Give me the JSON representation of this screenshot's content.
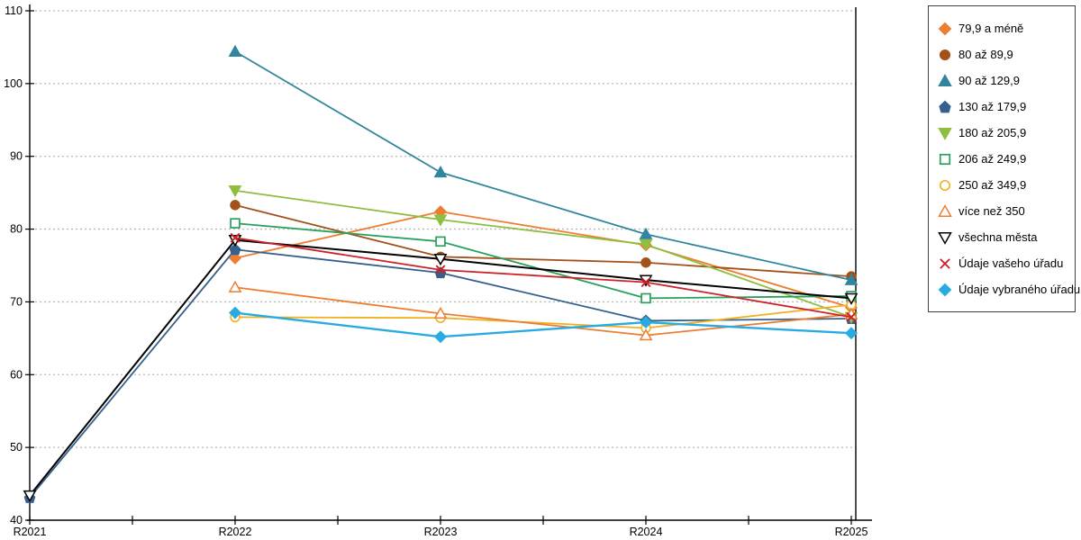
{
  "chart_data": {
    "type": "line",
    "title": "",
    "xlabel": "",
    "ylabel": "",
    "categories": [
      "R2021",
      "R2022",
      "R2023",
      "R2024",
      "R2025"
    ],
    "ylim": [
      40,
      110
    ],
    "y_ticks": [
      40,
      50,
      60,
      70,
      80,
      90,
      100,
      110
    ],
    "grid": "horizontal-dotted",
    "legend_position": "right",
    "series": [
      {
        "name": "79,9 a méně",
        "color": "#ED7D31",
        "marker": "diamond",
        "fill": "filled",
        "line_width": 1.8,
        "values": [
          null,
          76.0,
          82.4,
          77.8,
          69.2
        ]
      },
      {
        "name": "80 až 89,9",
        "color": "#A3511A",
        "marker": "circle",
        "fill": "filled",
        "line_width": 1.8,
        "values": [
          null,
          83.3,
          76.2,
          75.4,
          73.5
        ]
      },
      {
        "name": "90 až 129,9",
        "color": "#31859C",
        "marker": "triangle",
        "fill": "filled",
        "line_width": 1.8,
        "values": [
          null,
          104.4,
          87.8,
          79.3,
          73.0
        ]
      },
      {
        "name": "130 až 179,9",
        "color": "#35608D",
        "marker": "pentagon",
        "fill": "filled",
        "line_width": 1.8,
        "values": [
          43.1,
          77.2,
          74.0,
          67.4,
          67.7
        ]
      },
      {
        "name": "180 až 205,9",
        "color": "#8EBE42",
        "marker": "triangle-down",
        "fill": "filled",
        "line_width": 1.8,
        "values": [
          null,
          85.3,
          81.3,
          77.9,
          67.9
        ]
      },
      {
        "name": "206 až 249,9",
        "color": "#28A05C",
        "marker": "square",
        "fill": "open",
        "line_width": 1.8,
        "values": [
          null,
          80.8,
          78.3,
          70.5,
          70.8
        ]
      },
      {
        "name": "250 až 349,9",
        "color": "#F2B01E",
        "marker": "circle",
        "fill": "open",
        "line_width": 1.8,
        "values": [
          null,
          67.9,
          67.8,
          66.4,
          69.6
        ]
      },
      {
        "name": "více než 350",
        "color": "#ED7D31",
        "marker": "triangle",
        "fill": "open",
        "line_width": 1.8,
        "values": [
          null,
          72.0,
          68.4,
          65.4,
          68.3
        ]
      },
      {
        "name": "všechna města",
        "color": "#000000",
        "marker": "triangle-down",
        "fill": "open",
        "line_width": 2.0,
        "values": [
          43.4,
          78.5,
          75.9,
          73.0,
          70.5
        ]
      },
      {
        "name": "Údaje vašeho úřadu",
        "color": "#CC2128",
        "marker": "x",
        "fill": "open",
        "line_width": 1.8,
        "values": [
          null,
          78.8,
          74.4,
          72.7,
          67.9
        ]
      },
      {
        "name": "Údaje vybraného úřadu",
        "color": "#29ABE2",
        "marker": "diamond",
        "fill": "filled",
        "line_width": 2.4,
        "values": [
          null,
          68.5,
          65.2,
          67.2,
          65.7
        ]
      }
    ]
  }
}
